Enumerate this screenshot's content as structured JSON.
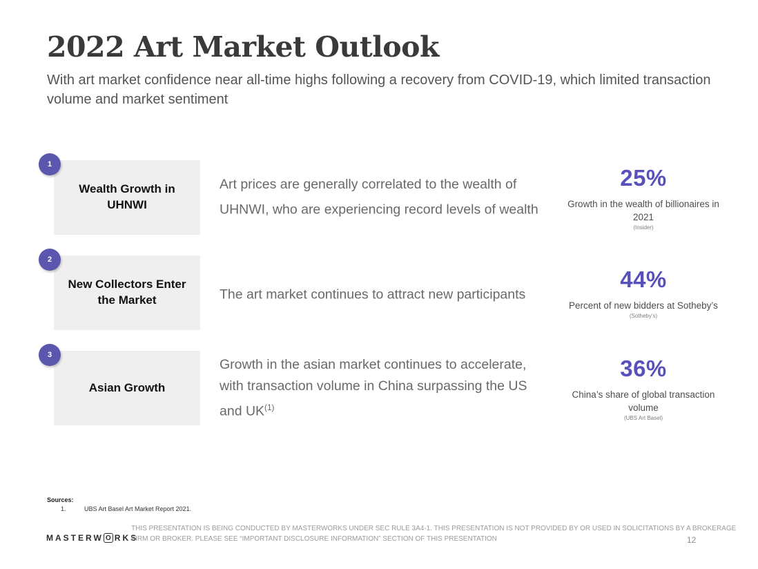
{
  "slide": {
    "title": "2022 Art Market Outlook",
    "subtitle": "With art market confidence near all-time highs following a recovery from COVID-19, which limited transaction volume and market sentiment",
    "page_number": "12"
  },
  "rows": [
    {
      "number": "1",
      "label": "Wealth Growth in UHNWI",
      "description": "Art prices are generally correlated to the wealth of UHNWI, who are experiencing record levels of wealth",
      "description_sup": "",
      "stat_value": "25%",
      "stat_label": "Growth in the wealth of billionaires in 2021",
      "stat_source": "(Insider)"
    },
    {
      "number": "2",
      "label": "New Collectors Enter the Market",
      "description": "The art market continues to attract new participants",
      "description_sup": "",
      "stat_value": "44%",
      "stat_label": "Percent of new bidders at Sotheby’s",
      "stat_source": "(Sotheby’s)"
    },
    {
      "number": "3",
      "label": "Asian Growth",
      "description": "Growth in the asian market continues to accelerate, with transaction volume in China surpassing the US and UK",
      "description_sup": "(1)",
      "stat_value": "36%",
      "stat_label": "China’s share of global transaction volume",
      "stat_source": "(UBS Art Basel)"
    }
  ],
  "sources": {
    "heading": "Sources:",
    "items": [
      {
        "index": "1.",
        "text": "UBS Art Basel Art Market Report 2021."
      }
    ]
  },
  "footer": {
    "logo_left": "MASTERW",
    "logo_o": "O",
    "logo_right": "RKS",
    "disclaimer": "THIS PRESENTATION  IS BEING CONDUCTED BY MASTERWORKS UNDER SEC RULE 3A4-1. THIS PRESENTATION  IS NOT PROVIDED BY OR USED IN SOLICITATIONS BY A BROKERAGE FIRM OR BROKER. PLEASE SEE “IMPORTANT DISCLOSURE INFORMATION” SECTION OF THIS PRESENTATION"
  },
  "colors": {
    "accent": "#5851bc",
    "badge": "#5b57ae",
    "card_bg": "#f0efef"
  }
}
